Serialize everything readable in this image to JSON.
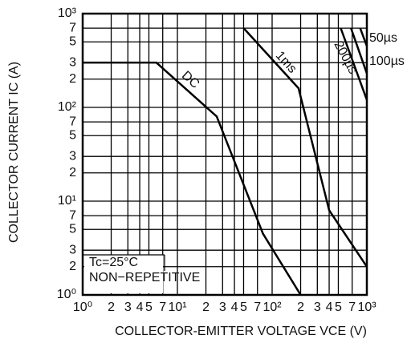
{
  "chart_data": {
    "type": "line",
    "x_label": "COLLECTOR-EMITTER VOLTAGE   VCE (V)",
    "y_label": "COLLECTOR CURRENT   IC (A)",
    "log_x": true,
    "log_y": true,
    "grid": true,
    "xlim": [
      1,
      1000
    ],
    "ylim": [
      1,
      1000
    ],
    "xticks": [
      {
        "value": 1,
        "label": "10⁰"
      },
      2,
      3,
      4,
      5,
      7,
      {
        "value": 10,
        "label": "10¹"
      },
      {
        "value": 20,
        "label": "2"
      },
      {
        "value": 30,
        "label": "3"
      },
      {
        "value": 40,
        "label": "4"
      },
      {
        "value": 50,
        "label": "5"
      },
      {
        "value": 70,
        "label": "7"
      },
      {
        "value": 100,
        "label": "10²"
      },
      {
        "value": 200,
        "label": "2"
      },
      {
        "value": 300,
        "label": "3"
      },
      {
        "value": 400,
        "label": "4"
      },
      {
        "value": 500,
        "label": "5"
      },
      {
        "value": 700,
        "label": "7"
      },
      {
        "value": 1000,
        "label": "10³"
      }
    ],
    "yticks": [
      {
        "value": 1,
        "label": "10⁰"
      },
      2,
      3,
      5,
      7,
      {
        "value": 10,
        "label": "10¹"
      },
      {
        "value": 20,
        "label": "2"
      },
      {
        "value": 30,
        "label": "3"
      },
      {
        "value": 50,
        "label": "5"
      },
      {
        "value": 70,
        "label": "7"
      },
      {
        "value": 100,
        "label": "10²"
      },
      {
        "value": 200,
        "label": "2"
      },
      {
        "value": 300,
        "label": "3"
      },
      {
        "value": 500,
        "label": "5"
      },
      {
        "value": 700,
        "label": "7"
      },
      {
        "value": 1000,
        "label": "10³"
      }
    ],
    "series": [
      {
        "name": "DC",
        "color": "#000000",
        "x": [
          1,
          6,
          26,
          80,
          200
        ],
        "values": [
          300,
          300,
          80,
          4.5,
          1
        ]
      },
      {
        "name": "1ms",
        "color": "#000000",
        "x": [
          50,
          190,
          400,
          1000
        ],
        "values": [
          700,
          160,
          8,
          2
        ]
      },
      {
        "name": "200µs",
        "color": "#000000",
        "x": [
          530,
          1000
        ],
        "values": [
          700,
          120
        ]
      },
      {
        "name": "100µs",
        "color": "#000000",
        "x": [
          680,
          1000
        ],
        "values": [
          700,
          230
        ]
      },
      {
        "name": "50µs",
        "color": "#000000",
        "x": [
          850,
          1000
        ],
        "values": [
          700,
          450
        ]
      }
    ],
    "annotations": [
      "Tc=25°C",
      "NON−REPETITIVE"
    ]
  }
}
